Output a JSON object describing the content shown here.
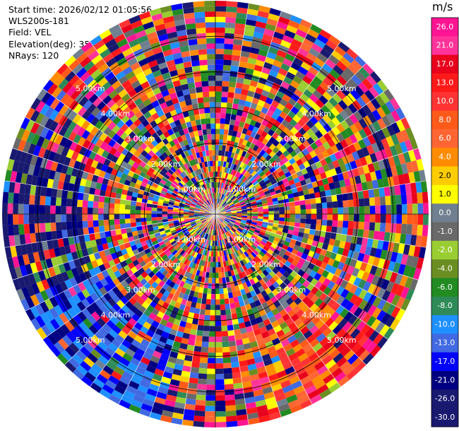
{
  "info": {
    "start_time": "Start time: 2026/02/12 01:05:56",
    "site": "WLS200s-181",
    "field": "Field: VEL",
    "elevation": "Elevation(deg): 35.00",
    "nrays": "NRays: 120"
  },
  "chart_data": {
    "type": "heatmap",
    "projection": "polar",
    "field": "VEL",
    "colorbar": {
      "title": "m/s",
      "ticks": [
        "26.0",
        "21.0",
        "17.0",
        "13.0",
        "10.0",
        "8.0",
        "6.0",
        "4.0",
        "2.0",
        "1.0",
        "0.0",
        "-1.0",
        "-2.0",
        "-4.0",
        "-6.0",
        "-8.0",
        "-10.0",
        "-13.0",
        "-17.0",
        "-21.0",
        "-26.0",
        "-30.0"
      ],
      "colors": [
        "#ff1493",
        "#ff3399",
        "#e8001c",
        "#ff1a1a",
        "#ff3333",
        "#ff5a1a",
        "#ff6633",
        "#ff8c00",
        "#ffcc00",
        "#ffff00",
        "#708090",
        "#696969",
        "#9acd32",
        "#6b8e23",
        "#228b22",
        "#2e8b57",
        "#1e90ff",
        "#4169e1",
        "#0000ff",
        "#000080",
        "#191970",
        "#191970"
      ]
    },
    "range_rings": [
      {
        "label": "1.00km",
        "range_km": 1
      },
      {
        "label": "2.00km",
        "range_km": 2
      },
      {
        "label": "3.00km",
        "range_km": 3
      },
      {
        "label": "4.00km",
        "range_km": 4
      },
      {
        "label": "5.00km",
        "range_km": 5
      }
    ],
    "max_range_km": 6.0,
    "n_rays": 120,
    "gates_per_ray": 40
  }
}
